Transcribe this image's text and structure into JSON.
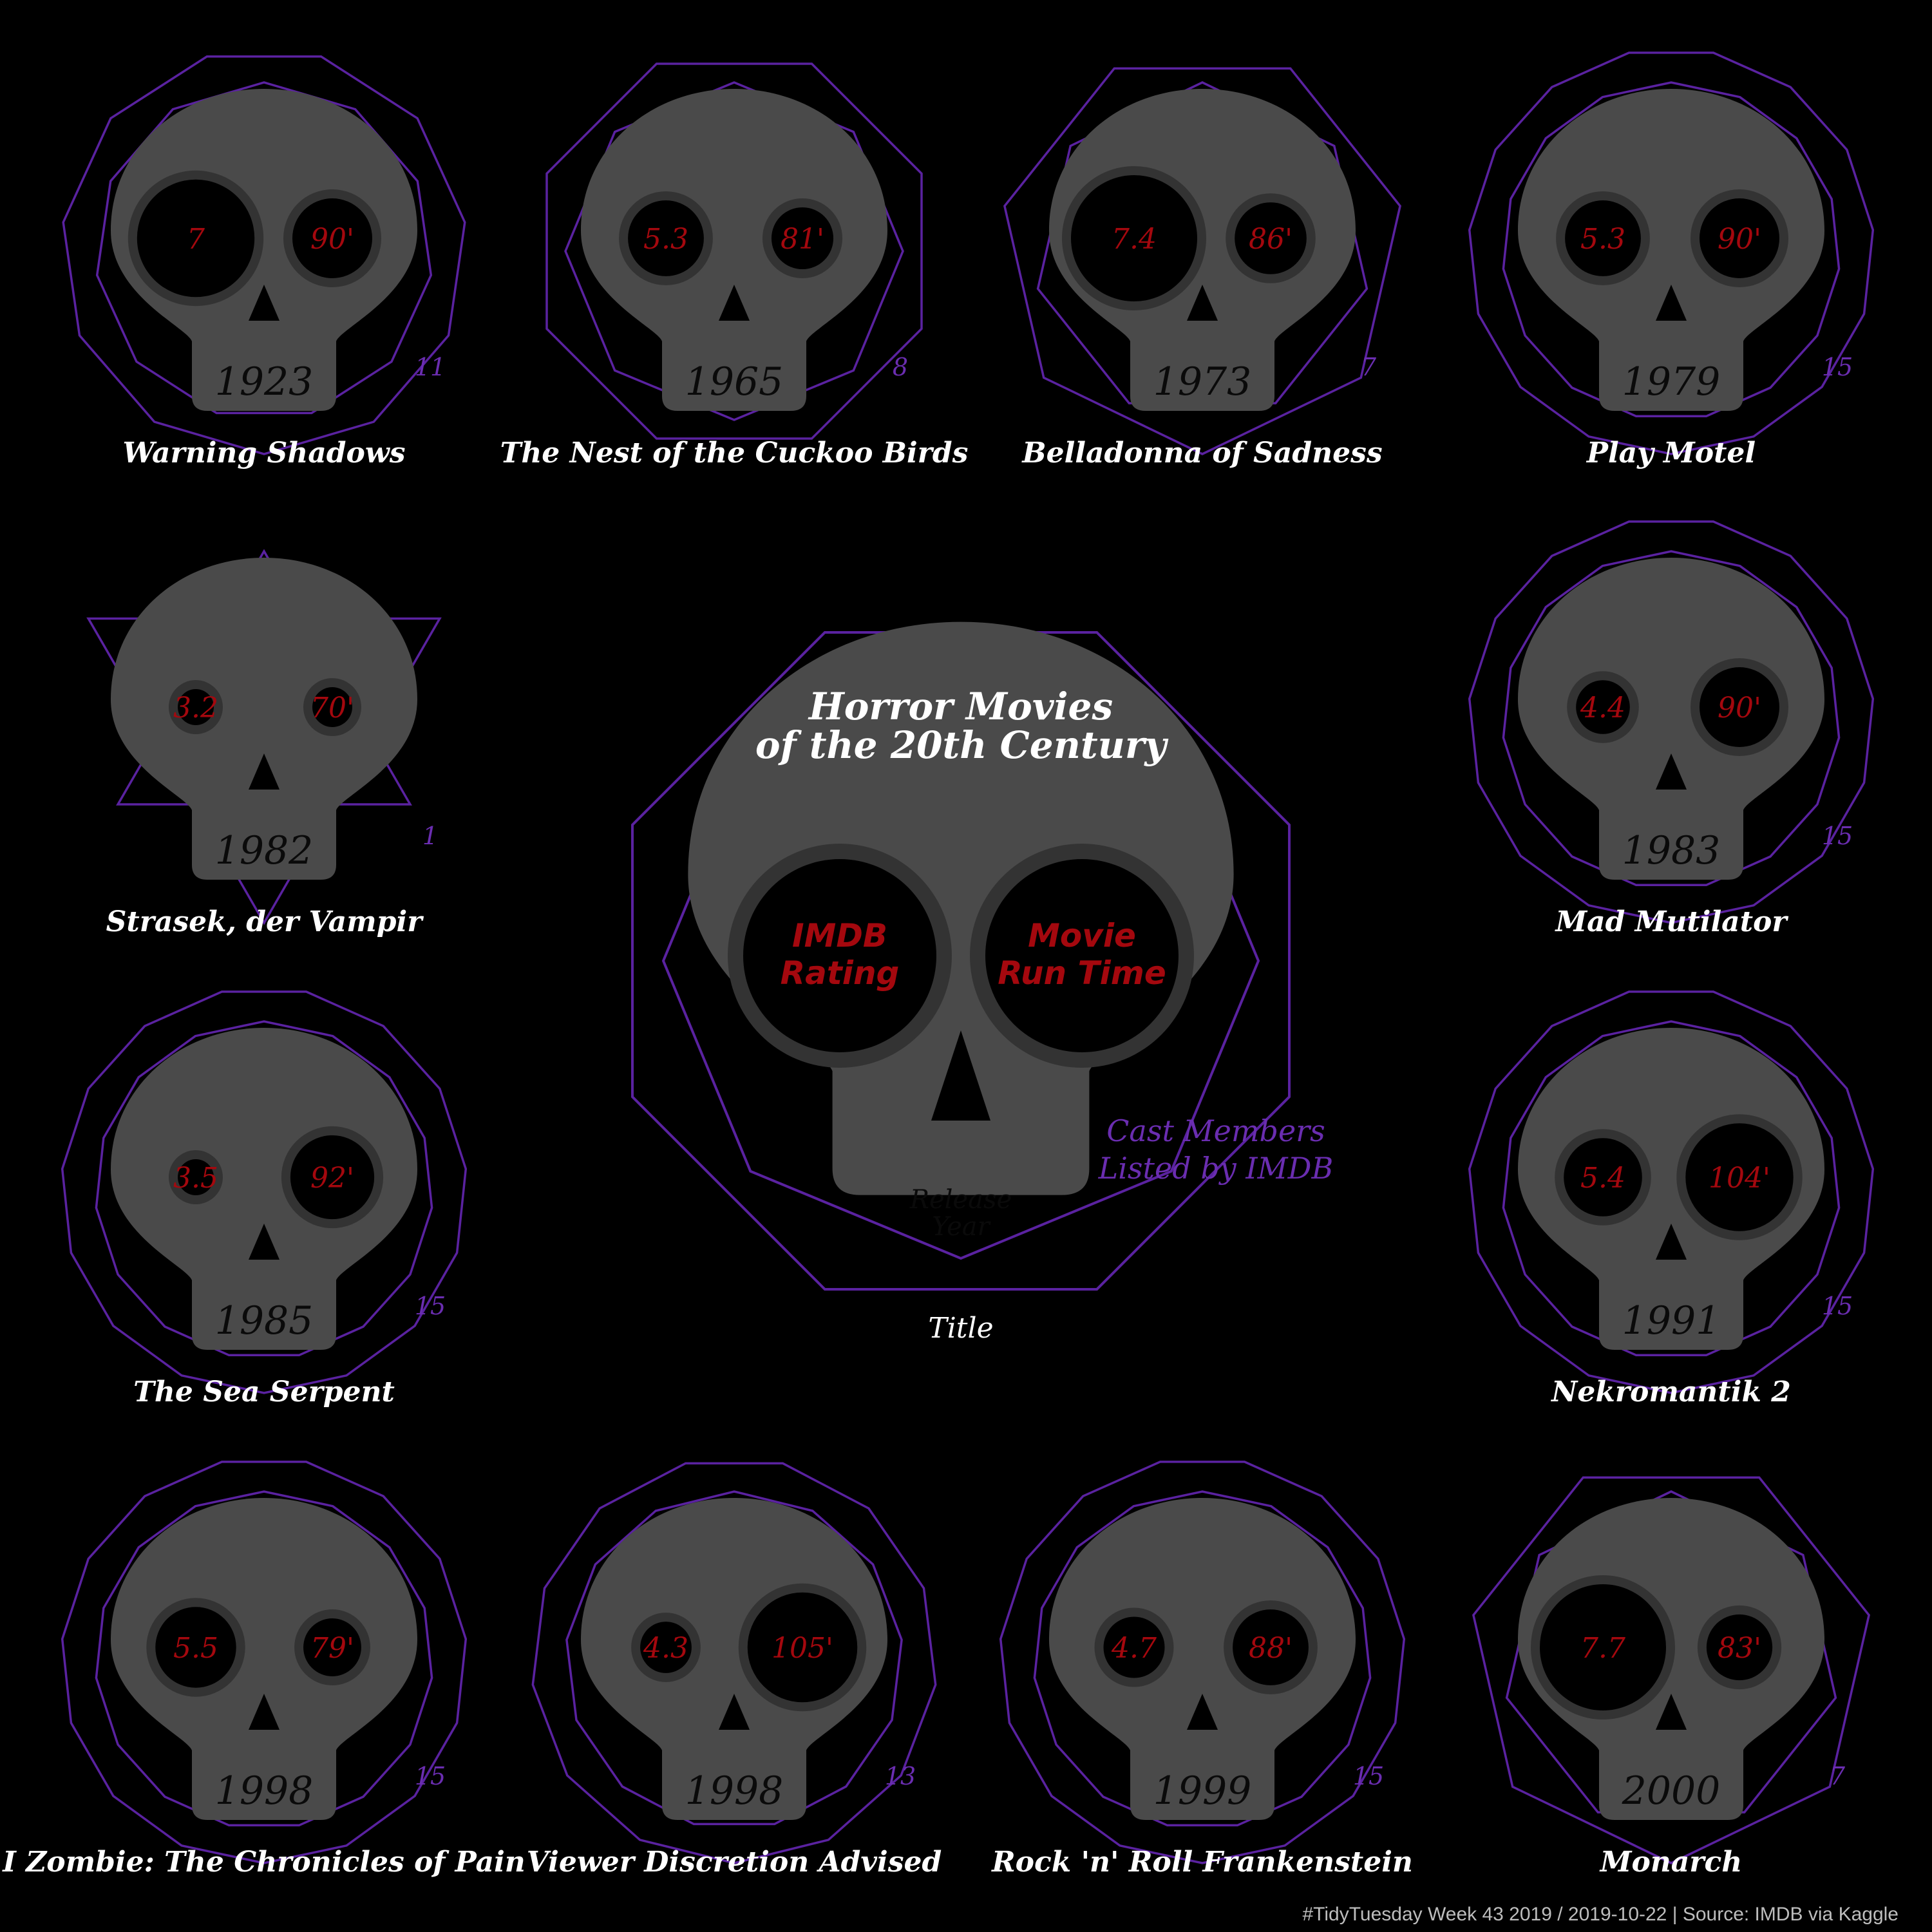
{
  "chart_data": {
    "type": "skull-glyph",
    "title": "Horror Movies\nof the 20th Century",
    "key": {
      "left_eye": "IMDB\nRating",
      "right_eye": "Movie\nRun Time",
      "mouth": "Release\nYear",
      "polygon": "Cast Members\nListed by IMDB",
      "below": "Title"
    },
    "movies": [
      {
        "title": "Warning Shadows",
        "year": 1923,
        "rating": "7",
        "runtime": "90'",
        "cast": 11
      },
      {
        "title": "The Nest of the Cuckoo Birds",
        "year": 1965,
        "rating": "5.3",
        "runtime": "81'",
        "cast": 8
      },
      {
        "title": "Belladonna of Sadness",
        "year": 1973,
        "rating": "7.4",
        "runtime": "86'",
        "cast": 7
      },
      {
        "title": "Play Motel",
        "year": 1979,
        "rating": "5.3",
        "runtime": "90'",
        "cast": 15
      },
      {
        "title": "Strasek, der Vampir",
        "year": 1982,
        "rating": "3.2",
        "runtime": "70'",
        "cast": 1
      },
      {
        "title": "Mad Mutilator",
        "year": 1983,
        "rating": "4.4",
        "runtime": "90'",
        "cast": 15
      },
      {
        "title": "The Sea Serpent",
        "year": 1985,
        "rating": "3.5",
        "runtime": "92'",
        "cast": 15
      },
      {
        "title": "Nekromantik 2",
        "year": 1991,
        "rating": "5.4",
        "runtime": "104'",
        "cast": 15
      },
      {
        "title": "I Zombie: The Chronicles of Pain",
        "year": 1998,
        "rating": "5.5",
        "runtime": "79'",
        "cast": 15
      },
      {
        "title": "Viewer Discretion Advised",
        "year": 1998,
        "rating": "4.3",
        "runtime": "105'",
        "cast": 13
      },
      {
        "title": "Rock 'n' Roll Frankenstein",
        "year": 1999,
        "rating": "4.7",
        "runtime": "88'",
        "cast": 15
      },
      {
        "title": "Monarch",
        "year": 2000,
        "rating": "7.7",
        "runtime": "83'",
        "cast": 7
      }
    ]
  },
  "caption": "#TidyTuesday Week 43 2019 / 2019-10-22 | Source: IMDB via Kaggle",
  "colors": {
    "background": "#000000",
    "skull": "#4a4a4a",
    "eye_ring": "#333333",
    "eye": "#000000",
    "eye_text": "#a4080e",
    "polygon": "#5a22a0",
    "title_text": "#ffffff",
    "year_text": "#0a0a0a"
  }
}
